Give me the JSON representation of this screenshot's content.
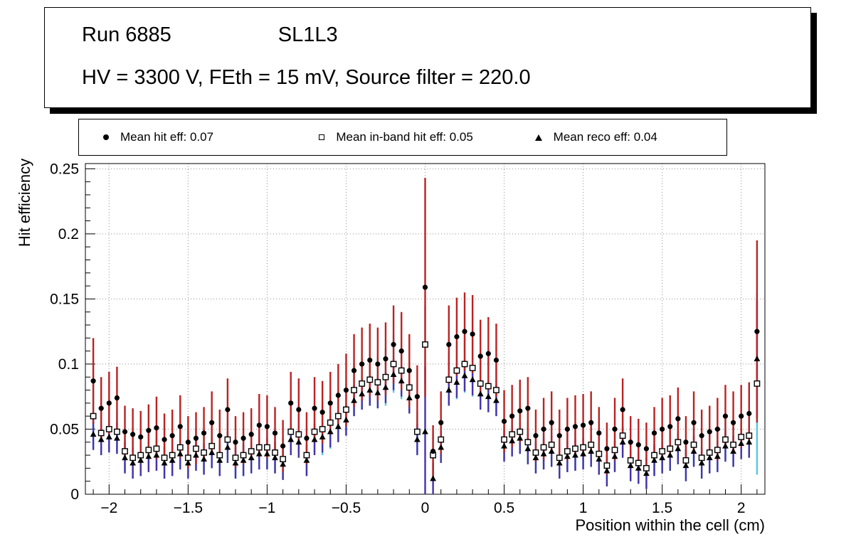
{
  "header": {
    "run_label": "Run 6885",
    "chamber_label": "SL1L3",
    "conditions": "HV = 3300 V, FEth = 15 mV, Source filter = 220.0"
  },
  "legend": {
    "items": [
      {
        "label": "Mean hit  eff: 0.07",
        "marker": "filled-circle"
      },
      {
        "label": "Mean in-band hit eff: 0.05",
        "marker": "open-square"
      },
      {
        "label": "Mean reco eff: 0.04",
        "marker": "filled-triangle"
      }
    ]
  },
  "chart_data": {
    "type": "scatter",
    "title": "",
    "xlabel": "Position within the cell (cm)",
    "ylabel": "Hit efficiency",
    "xlim": [
      -2.15,
      2.15
    ],
    "ylim": [
      0,
      0.254
    ],
    "grid": true,
    "legend_position": "top",
    "x_ticks": {
      "values": [
        -2,
        -1.5,
        -1,
        -0.5,
        0,
        0.5,
        1,
        1.5,
        2
      ],
      "labels": [
        "−2",
        "−1.5",
        "−1",
        "−0.5",
        "0",
        "0.5",
        "1",
        "1.5",
        "2"
      ]
    },
    "y_ticks": {
      "values": [
        0,
        0.05,
        0.1,
        0.15,
        0.2,
        0.25
      ],
      "labels": [
        "0",
        "0.05",
        "0.1",
        "0.15",
        "0.2",
        "0.25"
      ]
    },
    "x": [
      -2.1,
      -2.05,
      -2,
      -1.95,
      -1.9,
      -1.85,
      -1.8,
      -1.75,
      -1.7,
      -1.65,
      -1.6,
      -1.55,
      -1.5,
      -1.45,
      -1.4,
      -1.35,
      -1.3,
      -1.25,
      -1.2,
      -1.15,
      -1.1,
      -1.05,
      -1,
      -0.95,
      -0.9,
      -0.85,
      -0.8,
      -0.75,
      -0.7,
      -0.65,
      -0.6,
      -0.55,
      -0.5,
      -0.45,
      -0.4,
      -0.35,
      -0.3,
      -0.25,
      -0.2,
      -0.15,
      -0.1,
      -0.05,
      0,
      0.05,
      0.1,
      0.15,
      0.2,
      0.25,
      0.3,
      0.35,
      0.4,
      0.45,
      0.5,
      0.55,
      0.6,
      0.65,
      0.7,
      0.75,
      0.8,
      0.85,
      0.9,
      0.95,
      1,
      1.05,
      1.1,
      1.15,
      1.2,
      1.25,
      1.3,
      1.35,
      1.4,
      1.45,
      1.5,
      1.55,
      1.6,
      1.65,
      1.7,
      1.75,
      1.8,
      1.85,
      1.9,
      1.95,
      2,
      2.05,
      2.1
    ],
    "series": [
      {
        "name": "Mean hit  eff: 0.07",
        "mean": 0.07,
        "marker": "filled-circle",
        "marker_color": "#000000",
        "error_color": "#bb2222",
        "values": [
          0.087,
          0.066,
          0.07,
          0.074,
          0.048,
          0.046,
          0.044,
          0.049,
          0.051,
          0.042,
          0.045,
          0.052,
          0.04,
          0.043,
          0.047,
          0.055,
          0.045,
          0.065,
          0.04,
          0.043,
          0.046,
          0.053,
          0.052,
          0.047,
          0.037,
          0.07,
          0.065,
          0.043,
          0.066,
          0.063,
          0.07,
          0.076,
          0.08,
          0.095,
          0.1,
          0.103,
          0.1,
          0.104,
          0.115,
          0.11,
          0.095,
          0.075,
          0.159,
          0.033,
          0.055,
          0.115,
          0.121,
          0.125,
          0.123,
          0.106,
          0.108,
          0.103,
          0.056,
          0.06,
          0.064,
          0.066,
          0.045,
          0.05,
          0.055,
          0.045,
          0.05,
          0.052,
          0.053,
          0.055,
          0.047,
          0.035,
          0.05,
          0.065,
          0.04,
          0.038,
          0.035,
          0.047,
          0.05,
          0.052,
          0.058,
          0.04,
          0.055,
          0.045,
          0.048,
          0.05,
          0.06,
          0.055,
          0.06,
          0.062,
          0.125
        ],
        "errors": [
          0.033,
          0.024,
          0.024,
          0.024,
          0.02,
          0.02,
          0.02,
          0.02,
          0.024,
          0.02,
          0.02,
          0.024,
          0.02,
          0.02,
          0.02,
          0.024,
          0.02,
          0.024,
          0.02,
          0.02,
          0.02,
          0.024,
          0.024,
          0.02,
          0.02,
          0.024,
          0.024,
          0.02,
          0.024,
          0.024,
          0.024,
          0.024,
          0.028,
          0.028,
          0.028,
          0.028,
          0.028,
          0.028,
          0.03,
          0.03,
          0.028,
          0.024,
          0.084,
          0.02,
          0.024,
          0.03,
          0.03,
          0.03,
          0.03,
          0.028,
          0.028,
          0.028,
          0.024,
          0.024,
          0.024,
          0.024,
          0.02,
          0.024,
          0.024,
          0.02,
          0.024,
          0.024,
          0.024,
          0.024,
          0.02,
          0.02,
          0.024,
          0.024,
          0.02,
          0.02,
          0.02,
          0.02,
          0.024,
          0.024,
          0.024,
          0.02,
          0.024,
          0.02,
          0.02,
          0.024,
          0.024,
          0.024,
          0.024,
          0.024,
          0.07
        ]
      },
      {
        "name": "Mean in-band hit eff: 0.05",
        "mean": 0.05,
        "marker": "open-square",
        "marker_color": "#000000",
        "error_color": "#55c8e0",
        "values": [
          0.06,
          0.047,
          0.05,
          0.048,
          0.033,
          0.028,
          0.03,
          0.034,
          0.035,
          0.028,
          0.03,
          0.036,
          0.028,
          0.035,
          0.032,
          0.037,
          0.03,
          0.042,
          0.028,
          0.03,
          0.033,
          0.036,
          0.036,
          0.032,
          0.027,
          0.048,
          0.046,
          0.03,
          0.048,
          0.05,
          0.055,
          0.06,
          0.065,
          0.08,
          0.085,
          0.088,
          0.086,
          0.09,
          0.1,
          0.095,
          0.082,
          0.048,
          0.115,
          0.03,
          0.042,
          0.088,
          0.095,
          0.1,
          0.097,
          0.085,
          0.083,
          0.08,
          0.042,
          0.046,
          0.048,
          0.04,
          0.032,
          0.036,
          0.038,
          0.028,
          0.033,
          0.035,
          0.036,
          0.038,
          0.031,
          0.022,
          0.034,
          0.045,
          0.026,
          0.024,
          0.02,
          0.03,
          0.033,
          0.035,
          0.04,
          0.026,
          0.038,
          0.028,
          0.032,
          0.034,
          0.042,
          0.038,
          0.044,
          0.045,
          0.085
        ],
        "errors": [
          0.025,
          0.016,
          0.016,
          0.016,
          0.016,
          0.016,
          0.016,
          0.016,
          0.016,
          0.016,
          0.016,
          0.016,
          0.016,
          0.016,
          0.016,
          0.016,
          0.016,
          0.016,
          0.016,
          0.016,
          0.016,
          0.016,
          0.016,
          0.016,
          0.016,
          0.016,
          0.016,
          0.016,
          0.016,
          0.02,
          0.02,
          0.02,
          0.02,
          0.02,
          0.02,
          0.02,
          0.02,
          0.022,
          0.022,
          0.022,
          0.02,
          0.016,
          0.03,
          0.016,
          0.016,
          0.02,
          0.022,
          0.022,
          0.022,
          0.02,
          0.02,
          0.02,
          0.016,
          0.016,
          0.016,
          0.016,
          0.016,
          0.016,
          0.016,
          0.016,
          0.016,
          0.016,
          0.016,
          0.016,
          0.016,
          0.016,
          0.016,
          0.016,
          0.016,
          0.016,
          0.016,
          0.016,
          0.016,
          0.016,
          0.016,
          0.016,
          0.016,
          0.016,
          0.016,
          0.016,
          0.016,
          0.016,
          0.016,
          0.016,
          0.07
        ]
      },
      {
        "name": "Mean reco eff: 0.04",
        "mean": 0.04,
        "marker": "filled-triangle",
        "marker_color": "#000000",
        "error_color": "#4433aa",
        "values": [
          0.046,
          0.042,
          0.044,
          0.043,
          0.028,
          0.024,
          0.026,
          0.029,
          0.03,
          0.024,
          0.026,
          0.031,
          0.024,
          0.03,
          0.027,
          0.032,
          0.026,
          0.036,
          0.024,
          0.026,
          0.028,
          0.031,
          0.031,
          0.028,
          0.023,
          0.042,
          0.04,
          0.026,
          0.042,
          0.044,
          0.048,
          0.052,
          0.057,
          0.072,
          0.077,
          0.08,
          0.078,
          0.082,
          0.092,
          0.087,
          0.074,
          0.042,
          0.048,
          0.012,
          0.036,
          0.08,
          0.086,
          0.091,
          0.088,
          0.077,
          0.075,
          0.072,
          0.037,
          0.041,
          0.043,
          0.035,
          0.028,
          0.031,
          0.033,
          0.024,
          0.029,
          0.03,
          0.031,
          0.033,
          0.027,
          0.018,
          0.029,
          0.04,
          0.022,
          0.02,
          0.016,
          0.026,
          0.028,
          0.03,
          0.035,
          0.022,
          0.033,
          0.024,
          0.028,
          0.029,
          0.037,
          0.033,
          0.039,
          0.04,
          0.104
        ],
        "errors": [
          0.012,
          0.012,
          0.012,
          0.012,
          0.012,
          0.012,
          0.012,
          0.012,
          0.012,
          0.012,
          0.012,
          0.012,
          0.012,
          0.012,
          0.012,
          0.012,
          0.012,
          0.012,
          0.012,
          0.012,
          0.012,
          0.012,
          0.012,
          0.012,
          0.012,
          0.012,
          0.012,
          0.012,
          0.012,
          0.012,
          0.012,
          0.012,
          0.012,
          0.012,
          0.012,
          0.012,
          0.012,
          0.012,
          0.012,
          0.012,
          0.012,
          0.012,
          0.05,
          0.012,
          0.012,
          0.012,
          0.012,
          0.012,
          0.012,
          0.012,
          0.012,
          0.012,
          0.012,
          0.012,
          0.012,
          0.012,
          0.012,
          0.012,
          0.012,
          0.012,
          0.012,
          0.012,
          0.012,
          0.012,
          0.012,
          0.012,
          0.012,
          0.012,
          0.012,
          0.012,
          0.012,
          0.012,
          0.012,
          0.012,
          0.012,
          0.012,
          0.012,
          0.012,
          0.012,
          0.012,
          0.012,
          0.012,
          0.012,
          0.012,
          0.045
        ]
      }
    ]
  }
}
